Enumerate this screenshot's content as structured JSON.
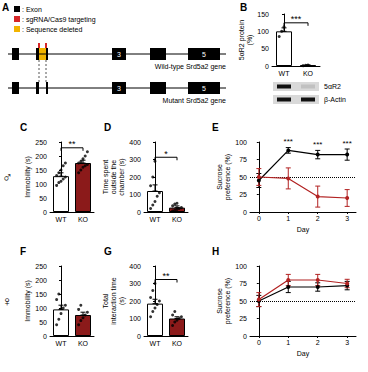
{
  "sex_symbols": [
    "♂",
    "♀"
  ],
  "diagram": {
    "panel": "A",
    "legend": [
      {
        "text": ": Exon",
        "color": "#000000"
      },
      {
        "text": ": sgRNA/Cas9 targeting",
        "color": "#d62728"
      },
      {
        "text": ": Sequence deleted",
        "color": "#f2b400"
      }
    ],
    "genes": [
      {
        "name": "Wild-type Srd5a2 gene",
        "exons": [
          null,
          null,
          "3",
          null,
          "5"
        ]
      },
      {
        "name": "Mutant Srd5a2 gene",
        "exons": [
          null,
          null,
          "3",
          null,
          "5"
        ]
      }
    ]
  },
  "chart_data": [
    {
      "panel": "B",
      "type": "bar",
      "ylabel": "5αR2 protein (%)",
      "categories": [
        "WT",
        "KO"
      ],
      "values": [
        100,
        2
      ],
      "errors": [
        10,
        1
      ],
      "points": [
        [
          85,
          100,
          113
        ],
        [
          1,
          2,
          3
        ]
      ],
      "colors": [
        "#ffffff",
        "#8b1a1a"
      ],
      "ylim": [
        0,
        150
      ],
      "yticks": [
        0,
        50,
        100,
        150
      ],
      "significance": "***",
      "blot_rows": [
        "5αR2",
        "β-Actin"
      ]
    },
    {
      "panel": "C",
      "type": "bar",
      "ylabel": "Immobility (s)",
      "categories": [
        "WT",
        "KO"
      ],
      "values": [
        128,
        175
      ],
      "errors": [
        12,
        10
      ],
      "points": [
        [
          95,
          105,
          110,
          118,
          125,
          130,
          140,
          150,
          165,
          175
        ],
        [
          140,
          150,
          160,
          165,
          170,
          175,
          180,
          190,
          200,
          215
        ]
      ],
      "colors": [
        "#ffffff",
        "#8b1a1a"
      ],
      "ylim": [
        0,
        250
      ],
      "yticks": [
        0,
        50,
        100,
        150,
        200,
        250
      ],
      "significance": "**"
    },
    {
      "panel": "D",
      "type": "bar",
      "ylabel": "Time spent outside the chamber (s)",
      "categories": [
        "WT",
        "KO"
      ],
      "values": [
        120,
        25
      ],
      "errors": [
        35,
        10
      ],
      "points": [
        [
          20,
          40,
          60,
          90,
          110,
          150,
          200,
          290
        ],
        [
          5,
          10,
          15,
          20,
          25,
          35,
          45,
          50
        ]
      ],
      "colors": [
        "#ffffff",
        "#8b1a1a"
      ],
      "ylim": [
        0,
        400
      ],
      "yticks": [
        0,
        100,
        200,
        300,
        400
      ],
      "significance": "*"
    },
    {
      "panel": "E",
      "type": "line",
      "xlabel": "Day",
      "ylabel": "Sucrose preference (%)",
      "x": [
        0,
        1,
        2,
        3
      ],
      "xlim": [
        -0.3,
        3.3
      ],
      "xticks": [
        0,
        1,
        2,
        3
      ],
      "ylim": [
        0,
        100
      ],
      "yticks": [
        0,
        25,
        50,
        75,
        100
      ],
      "reference_y": 50,
      "marker": "circle",
      "series": [
        {
          "color": "#000000",
          "values": [
            45,
            88,
            82,
            82
          ],
          "errors": [
            10,
            4,
            6,
            8
          ]
        },
        {
          "color": "#b22222",
          "values": [
            50,
            48,
            22,
            20
          ],
          "errors": [
            12,
            15,
            15,
            12
          ]
        }
      ],
      "annotations": [
        {
          "x": 1,
          "text": "***"
        },
        {
          "x": 2,
          "text": "***"
        },
        {
          "x": 3,
          "text": "***"
        }
      ]
    },
    {
      "panel": "F",
      "type": "bar",
      "ylabel": "Immobility (s)",
      "categories": [
        "WT",
        "KO"
      ],
      "values": [
        95,
        75
      ],
      "errors": [
        15,
        10
      ],
      "points": [
        [
          40,
          60,
          80,
          100,
          110,
          130,
          150
        ],
        [
          40,
          55,
          65,
          75,
          85,
          95,
          110
        ]
      ],
      "colors": [
        "#ffffff",
        "#8b1a1a"
      ],
      "ylim": [
        0,
        250
      ],
      "yticks": [
        0,
        50,
        100,
        150,
        200,
        250
      ]
    },
    {
      "panel": "G",
      "type": "bar",
      "ylabel": "Total interaction time (s)",
      "categories": [
        "WT",
        "KO"
      ],
      "values": [
        185,
        100
      ],
      "errors": [
        25,
        10
      ],
      "points": [
        [
          110,
          140,
          160,
          180,
          200,
          220,
          260,
          300
        ],
        [
          60,
          80,
          90,
          100,
          110,
          120,
          140
        ]
      ],
      "colors": [
        "#ffffff",
        "#8b1a1a"
      ],
      "ylim": [
        0,
        400
      ],
      "yticks": [
        0,
        100,
        200,
        300,
        400
      ],
      "significance": "**"
    },
    {
      "panel": "H",
      "type": "line",
      "xlabel": "Day",
      "ylabel": "Sucrose preference (%)",
      "x": [
        0,
        1,
        2,
        3
      ],
      "xlim": [
        -0.3,
        3.3
      ],
      "xticks": [
        0,
        1,
        2,
        3
      ],
      "ylim": [
        0,
        100
      ],
      "yticks": [
        0,
        25,
        50,
        75,
        100
      ],
      "reference_y": 50,
      "marker": "circle",
      "series": [
        {
          "color": "#000000",
          "values": [
            50,
            70,
            70,
            72
          ],
          "errors": [
            8,
            8,
            6,
            6
          ]
        },
        {
          "color": "#b22222",
          "values": [
            52,
            80,
            80,
            75
          ],
          "errors": [
            10,
            8,
            8,
            6
          ]
        }
      ]
    }
  ]
}
